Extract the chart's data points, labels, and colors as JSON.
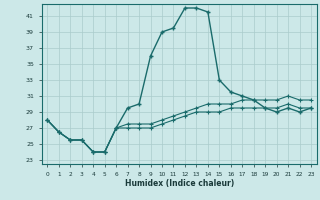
{
  "xlabel": "Humidex (Indice chaleur)",
  "ylabel": "",
  "background_color": "#cce8e8",
  "grid_color": "#aacccc",
  "line_color": "#1a6b6b",
  "x": [
    0,
    1,
    2,
    3,
    4,
    5,
    6,
    7,
    8,
    9,
    10,
    11,
    12,
    13,
    14,
    15,
    16,
    17,
    18,
    19,
    20,
    21,
    22,
    23
  ],
  "y_main": [
    28,
    26.5,
    25.5,
    25.5,
    24,
    24,
    27,
    29.5,
    30,
    36,
    39,
    39.5,
    42,
    42,
    41.5,
    33,
    31.5,
    31,
    30.5,
    29.5,
    29,
    29.5,
    29,
    29.5
  ],
  "y_line2": [
    28,
    26.5,
    25.5,
    25.5,
    24,
    24,
    27,
    27.5,
    27.5,
    27.5,
    28,
    28.5,
    29,
    29.5,
    30,
    30,
    30,
    30.5,
    30.5,
    30.5,
    30.5,
    31,
    30.5,
    30.5
  ],
  "y_line3": [
    28,
    26.5,
    25.5,
    25.5,
    24,
    24,
    27,
    27,
    27,
    27,
    27.5,
    28,
    28.5,
    29,
    29,
    29,
    29.5,
    29.5,
    29.5,
    29.5,
    29.5,
    30,
    29.5,
    29.5
  ],
  "ylim": [
    22.5,
    42.5
  ],
  "yticks": [
    23,
    25,
    27,
    29,
    31,
    33,
    35,
    37,
    39,
    41
  ],
  "xticks": [
    0,
    1,
    2,
    3,
    4,
    5,
    6,
    7,
    8,
    9,
    10,
    11,
    12,
    13,
    14,
    15,
    16,
    17,
    18,
    19,
    20,
    21,
    22,
    23
  ]
}
